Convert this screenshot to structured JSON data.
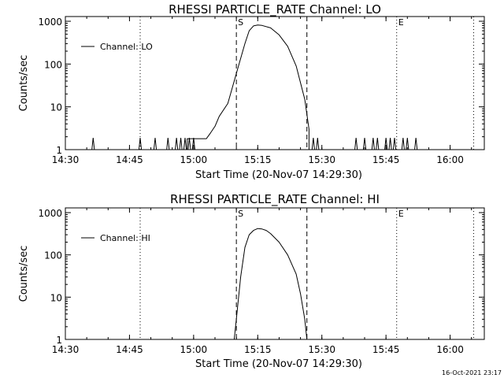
{
  "chart_data": [
    {
      "type": "line",
      "title": "RHESSI PARTICLE_RATE Channel: LO",
      "xlabel": "Start Time (20-Nov-07 14:29:30)",
      "ylabel": "Counts/sec",
      "yscale": "log",
      "ylim": [
        1,
        1000
      ],
      "xlim": [
        "14:30",
        "16:08"
      ],
      "xticks": [
        "14:30",
        "14:45",
        "15:00",
        "15:15",
        "15:30",
        "15:45",
        "16:00"
      ],
      "yticks": [
        "1",
        "10",
        "100",
        "1000"
      ],
      "legend": {
        "position": "top-left",
        "entries": [
          "Channel: LO"
        ]
      },
      "markers": [
        {
          "label": "S",
          "time": "15:10",
          "style": "dashed"
        },
        {
          "time": "15:26.5",
          "style": "dashed"
        },
        {
          "time": "14:47.5",
          "style": "dotted"
        },
        {
          "label": "E",
          "time": "15:47.5",
          "style": "dotted"
        },
        {
          "time": "16:05.5",
          "style": "dotted"
        }
      ],
      "series": [
        {
          "name": "Channel: LO",
          "spikes": [
            "14:36.5",
            "14:47.5",
            "14:51",
            "14:54",
            "14:56",
            "14:57",
            "14:58",
            "14:59",
            "15:00",
            "15:28",
            "15:29",
            "15:38",
            "15:40",
            "15:42",
            "15:43",
            "15:45",
            "15:46",
            "15:47",
            "15:49",
            "15:50",
            "15:52"
          ],
          "x": [
            "14:58.5",
            "15:01",
            "15:03",
            "15:04",
            "15:05",
            "15:06",
            "15:08",
            "15:10",
            "15:12",
            "15:13",
            "15:14",
            "15:15",
            "15:16",
            "15:18",
            "15:20",
            "15:22",
            "15:24",
            "15:26",
            "15:27"
          ],
          "y": [
            1.8,
            1.8,
            1.8,
            2.5,
            3.5,
            6,
            12,
            60,
            300,
            600,
            780,
            820,
            800,
            700,
            480,
            260,
            90,
            15,
            3
          ]
        }
      ]
    },
    {
      "type": "line",
      "title": "RHESSI PARTICLE_RATE Channel: HI",
      "xlabel": "Start Time (20-Nov-07 14:29:30)",
      "ylabel": "Counts/sec",
      "yscale": "log",
      "ylim": [
        1,
        1000
      ],
      "xlim": [
        "14:30",
        "16:08"
      ],
      "xticks": [
        "14:30",
        "14:45",
        "15:00",
        "15:15",
        "15:30",
        "15:45",
        "16:00"
      ],
      "yticks": [
        "1",
        "10",
        "100",
        "1000"
      ],
      "legend": {
        "position": "top-left",
        "entries": [
          "Channel: HI"
        ]
      },
      "markers": [
        {
          "label": "S",
          "time": "15:10",
          "style": "dashed"
        },
        {
          "time": "15:26.5",
          "style": "dashed"
        },
        {
          "time": "14:47.5",
          "style": "dotted"
        },
        {
          "label": "E",
          "time": "15:47.5",
          "style": "dotted"
        },
        {
          "time": "16:05.5",
          "style": "dotted"
        }
      ],
      "series": [
        {
          "name": "Channel: HI",
          "spikes": [],
          "x": [
            "15:09.5",
            "15:10",
            "15:11",
            "15:12",
            "15:13",
            "15:14",
            "15:15",
            "15:16",
            "15:17",
            "15:18",
            "15:20",
            "15:22",
            "15:24",
            "15:25",
            "15:26",
            "15:26.5"
          ],
          "y": [
            1,
            3,
            30,
            150,
            300,
            380,
            420,
            410,
            380,
            320,
            200,
            100,
            35,
            12,
            3,
            1
          ]
        }
      ]
    }
  ],
  "timestamp": "16-Oct-2021 23:17"
}
